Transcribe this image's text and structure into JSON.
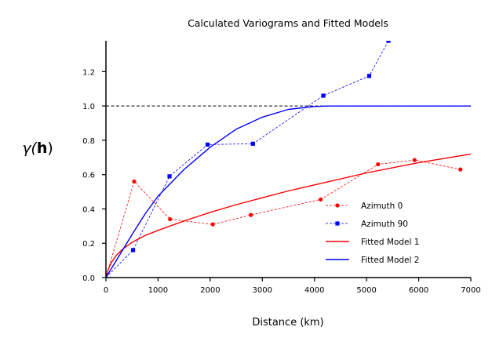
{
  "chart_data": {
    "type": "line",
    "title": "Calculated Variograms and Fitted Models",
    "xlabel": "Distance (km)",
    "ylabel": {
      "prefix": "γ(",
      "bold": "h",
      "suffix": ")"
    },
    "xlim": [
      0,
      7000
    ],
    "ylim": [
      0,
      1.38
    ],
    "xticks": [
      0,
      1000,
      2000,
      3000,
      4000,
      5000,
      6000,
      7000
    ],
    "yticks": [
      0.0,
      0.2,
      0.4,
      0.6,
      0.8,
      1.0,
      1.2
    ],
    "xtick_labels": [
      "0",
      "1000",
      "2000",
      "3000",
      "4000",
      "5000",
      "6000",
      "7000"
    ],
    "ytick_labels": [
      "0.0",
      "0.2",
      "0.4",
      "0.6",
      "0.8",
      "1.0",
      "1.2"
    ],
    "reference_line": {
      "y": 1.0,
      "style": "dashed",
      "color": "#000000"
    },
    "legend_placement": "lower-right",
    "series": [
      {
        "name": "Azimuth 0",
        "style": "dashed-markers",
        "marker": "circle",
        "color": "#ff0000",
        "x": [
          0,
          540,
          1230,
          2050,
          2780,
          4120,
          5220,
          5920,
          6800
        ],
        "y": [
          0.0,
          0.56,
          0.34,
          0.31,
          0.365,
          0.455,
          0.66,
          0.685,
          0.63
        ]
      },
      {
        "name": "Azimuth 90",
        "style": "dashed-markers",
        "marker": "square",
        "color": "#0000ff",
        "x": [
          0,
          520,
          1220,
          1950,
          2820,
          4170,
          5050,
          5420
        ],
        "y": [
          0.0,
          0.16,
          0.59,
          0.775,
          0.78,
          1.06,
          1.175,
          1.38
        ]
      },
      {
        "name": "Fitted Model 1",
        "style": "solid",
        "color": "#ff0000",
        "x": [
          0,
          50,
          100,
          200,
          300,
          500,
          750,
          1000,
          1500,
          2000,
          2500,
          3000,
          3500,
          4000,
          4500,
          5000,
          5500,
          6000,
          6500,
          7000
        ],
        "y": [
          0.0,
          0.052,
          0.085,
          0.13,
          0.16,
          0.205,
          0.245,
          0.275,
          0.33,
          0.38,
          0.425,
          0.465,
          0.505,
          0.54,
          0.575,
          0.61,
          0.64,
          0.67,
          0.695,
          0.72
        ]
      },
      {
        "name": "Fitted Model 2",
        "style": "solid",
        "color": "#0000ff",
        "x": [
          0,
          100,
          250,
          500,
          750,
          1000,
          1500,
          2000,
          2500,
          3000,
          3500,
          4000,
          4250,
          4500,
          5000,
          6000,
          7000
        ],
        "y": [
          0.0,
          0.05,
          0.125,
          0.25,
          0.37,
          0.475,
          0.63,
          0.76,
          0.865,
          0.935,
          0.98,
          0.997,
          1.0,
          1.0,
          1.0,
          1.0,
          1.0
        ]
      }
    ]
  }
}
